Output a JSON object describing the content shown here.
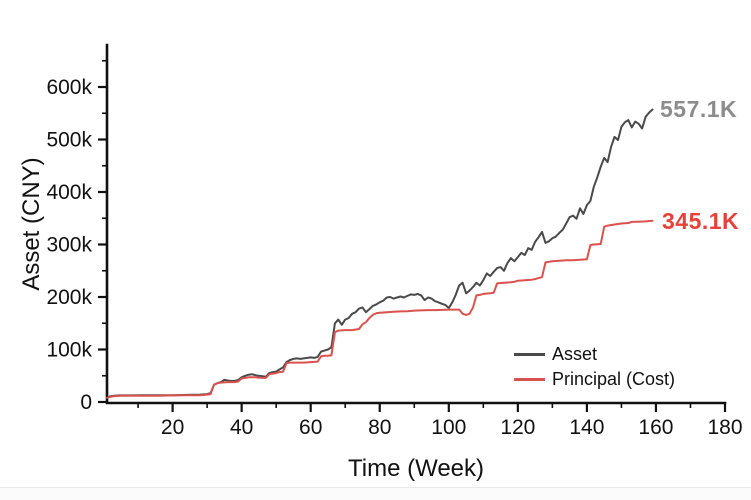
{
  "chart_data": {
    "type": "line",
    "title": "",
    "xlabel": "Time (Week)",
    "ylabel": "Asset (CNY)",
    "unit": "values in thousands of CNY (k)",
    "xlim": [
      1,
      180
    ],
    "ylim_k": [
      0,
      680
    ],
    "grid": false,
    "legend_position": "inside lower-right",
    "x_major_ticks": [
      20,
      40,
      60,
      80,
      100,
      120,
      140,
      160,
      180
    ],
    "x_minor_ticks": [
      10,
      30,
      50,
      70,
      90,
      110,
      130,
      150,
      170
    ],
    "y_major_ticks": [
      [
        0,
        "0"
      ],
      [
        100,
        "100k"
      ],
      [
        200,
        "200k"
      ],
      [
        300,
        "300k"
      ],
      [
        400,
        "400k"
      ],
      [
        500,
        "500k"
      ],
      [
        600,
        "600k"
      ]
    ],
    "y_minor_ticks_k": [
      50,
      150,
      250,
      350,
      450,
      550,
      650
    ],
    "axis_color": "#111111",
    "series": [
      {
        "name": "Asset",
        "color": "#4a4a4a",
        "end_label": "557.1K",
        "end_label_color": "#8c8c8c",
        "final_value_k": 557.1,
        "points_week_valueK": [
          [
            1,
            8
          ],
          [
            2,
            11
          ],
          [
            3,
            12
          ],
          [
            5,
            12.5
          ],
          [
            8,
            12.5
          ],
          [
            12,
            13
          ],
          [
            16,
            13
          ],
          [
            20,
            13
          ],
          [
            24,
            13.5
          ],
          [
            28,
            14
          ],
          [
            30,
            15
          ],
          [
            31,
            17
          ],
          [
            32,
            33
          ],
          [
            33,
            36
          ],
          [
            34,
            38
          ],
          [
            35,
            42
          ],
          [
            36,
            41
          ],
          [
            37,
            40
          ],
          [
            38,
            40
          ],
          [
            39,
            42
          ],
          [
            40,
            47
          ],
          [
            41,
            50
          ],
          [
            42,
            52
          ],
          [
            43,
            53
          ],
          [
            44,
            51
          ],
          [
            45,
            50
          ],
          [
            46,
            49
          ],
          [
            47,
            48
          ],
          [
            48,
            55
          ],
          [
            49,
            57
          ],
          [
            50,
            58
          ],
          [
            51,
            62
          ],
          [
            52,
            66
          ],
          [
            53,
            76
          ],
          [
            54,
            80
          ],
          [
            55,
            82
          ],
          [
            56,
            83
          ],
          [
            57,
            82
          ],
          [
            58,
            83
          ],
          [
            59,
            84
          ],
          [
            60,
            85
          ],
          [
            61,
            84
          ],
          [
            62,
            86
          ],
          [
            63,
            96
          ],
          [
            64,
            98
          ],
          [
            65,
            100
          ],
          [
            66,
            104
          ],
          [
            67,
            150
          ],
          [
            68,
            157
          ],
          [
            69,
            147
          ],
          [
            70,
            157
          ],
          [
            71,
            160
          ],
          [
            72,
            168
          ],
          [
            73,
            171
          ],
          [
            74,
            178
          ],
          [
            75,
            180
          ],
          [
            76,
            171
          ],
          [
            77,
            177
          ],
          [
            78,
            183
          ],
          [
            79,
            186
          ],
          [
            80,
            190
          ],
          [
            81,
            193
          ],
          [
            82,
            199
          ],
          [
            83,
            200
          ],
          [
            84,
            197
          ],
          [
            85,
            199
          ],
          [
            86,
            201
          ],
          [
            87,
            199
          ],
          [
            88,
            202
          ],
          [
            89,
            205
          ],
          [
            90,
            204
          ],
          [
            91,
            206
          ],
          [
            92,
            203
          ],
          [
            93,
            194
          ],
          [
            94,
            199
          ],
          [
            95,
            197
          ],
          [
            96,
            192
          ],
          [
            97,
            190
          ],
          [
            98,
            187
          ],
          [
            99,
            185
          ],
          [
            100,
            179
          ],
          [
            101,
            190
          ],
          [
            102,
            204
          ],
          [
            103,
            222
          ],
          [
            104,
            227
          ],
          [
            105,
            207
          ],
          [
            106,
            212
          ],
          [
            107,
            219
          ],
          [
            108,
            227
          ],
          [
            109,
            222
          ],
          [
            110,
            232
          ],
          [
            111,
            245
          ],
          [
            112,
            240
          ],
          [
            113,
            248
          ],
          [
            114,
            255
          ],
          [
            115,
            257
          ],
          [
            116,
            250
          ],
          [
            117,
            265
          ],
          [
            118,
            274
          ],
          [
            119,
            268
          ],
          [
            120,
            276
          ],
          [
            121,
            284
          ],
          [
            122,
            280
          ],
          [
            123,
            293
          ],
          [
            124,
            290
          ],
          [
            125,
            305
          ],
          [
            126,
            314
          ],
          [
            127,
            324
          ],
          [
            128,
            303
          ],
          [
            129,
            306
          ],
          [
            130,
            312
          ],
          [
            131,
            315
          ],
          [
            132,
            322
          ],
          [
            133,
            328
          ],
          [
            134,
            340
          ],
          [
            135,
            352
          ],
          [
            136,
            355
          ],
          [
            137,
            349
          ],
          [
            138,
            369
          ],
          [
            139,
            358
          ],
          [
            140,
            375
          ],
          [
            141,
            383
          ],
          [
            142,
            410
          ],
          [
            143,
            428
          ],
          [
            144,
            448
          ],
          [
            145,
            465
          ],
          [
            146,
            457
          ],
          [
            147,
            486
          ],
          [
            148,
            505
          ],
          [
            149,
            499
          ],
          [
            150,
            524
          ],
          [
            151,
            533
          ],
          [
            152,
            537
          ],
          [
            153,
            523
          ],
          [
            154,
            534
          ],
          [
            155,
            530
          ],
          [
            156,
            521
          ],
          [
            157,
            543
          ],
          [
            158,
            551
          ],
          [
            159,
            557.1
          ]
        ]
      },
      {
        "name": "Principal (Cost)",
        "color": "#d9524e",
        "end_label": "345.1K",
        "end_label_color": "#e6423a",
        "final_value_k": 345.1,
        "points_week_valueK": [
          [
            1,
            8
          ],
          [
            2,
            10
          ],
          [
            3,
            11
          ],
          [
            5,
            12
          ],
          [
            8,
            12
          ],
          [
            12,
            12
          ],
          [
            16,
            12
          ],
          [
            20,
            12.5
          ],
          [
            24,
            13
          ],
          [
            28,
            13
          ],
          [
            30,
            14
          ],
          [
            31,
            15
          ],
          [
            32,
            33
          ],
          [
            33,
            36
          ],
          [
            34,
            37
          ],
          [
            36,
            38
          ],
          [
            38,
            38
          ],
          [
            39,
            39
          ],
          [
            40,
            45
          ],
          [
            41,
            46
          ],
          [
            42,
            47
          ],
          [
            44,
            47
          ],
          [
            45,
            46.5
          ],
          [
            46,
            46
          ],
          [
            47,
            46
          ],
          [
            48,
            53
          ],
          [
            49,
            54
          ],
          [
            50,
            55
          ],
          [
            51,
            57
          ],
          [
            52,
            58
          ],
          [
            53,
            74
          ],
          [
            54,
            75
          ],
          [
            56,
            75
          ],
          [
            58,
            75
          ],
          [
            60,
            76
          ],
          [
            62,
            77
          ],
          [
            63,
            87
          ],
          [
            64,
            88
          ],
          [
            65,
            88
          ],
          [
            66,
            89
          ],
          [
            67,
            133
          ],
          [
            68,
            136
          ],
          [
            70,
            137
          ],
          [
            72,
            137
          ],
          [
            74,
            139
          ],
          [
            75,
            148
          ],
          [
            76,
            152
          ],
          [
            77,
            160
          ],
          [
            78,
            166
          ],
          [
            79,
            169
          ],
          [
            80,
            170
          ],
          [
            82,
            171
          ],
          [
            84,
            172
          ],
          [
            86,
            172.5
          ],
          [
            88,
            173
          ],
          [
            90,
            174
          ],
          [
            92,
            174.5
          ],
          [
            94,
            175
          ],
          [
            96,
            175
          ],
          [
            98,
            175.5
          ],
          [
            100,
            176
          ],
          [
            102,
            176
          ],
          [
            103,
            176
          ],
          [
            104,
            168
          ],
          [
            105,
            166
          ],
          [
            106,
            168
          ],
          [
            107,
            180
          ],
          [
            108,
            203
          ],
          [
            109,
            204
          ],
          [
            110,
            206
          ],
          [
            112,
            207
          ],
          [
            113,
            208
          ],
          [
            114,
            226
          ],
          [
            116,
            227
          ],
          [
            118,
            228
          ],
          [
            119,
            229
          ],
          [
            120,
            231
          ],
          [
            122,
            232
          ],
          [
            124,
            233
          ],
          [
            125,
            234
          ],
          [
            126,
            236
          ],
          [
            127,
            238
          ],
          [
            128,
            266
          ],
          [
            130,
            268
          ],
          [
            132,
            269
          ],
          [
            134,
            270
          ],
          [
            136,
            270
          ],
          [
            138,
            271
          ],
          [
            140,
            272
          ],
          [
            141,
            299
          ],
          [
            142,
            300
          ],
          [
            144,
            301
          ],
          [
            145,
            334
          ],
          [
            146,
            336
          ],
          [
            148,
            338
          ],
          [
            150,
            340
          ],
          [
            152,
            341
          ],
          [
            153,
            343
          ],
          [
            155,
            343.5
          ],
          [
            157,
            344
          ],
          [
            158,
            344.5
          ],
          [
            159,
            345.1
          ]
        ]
      }
    ]
  }
}
